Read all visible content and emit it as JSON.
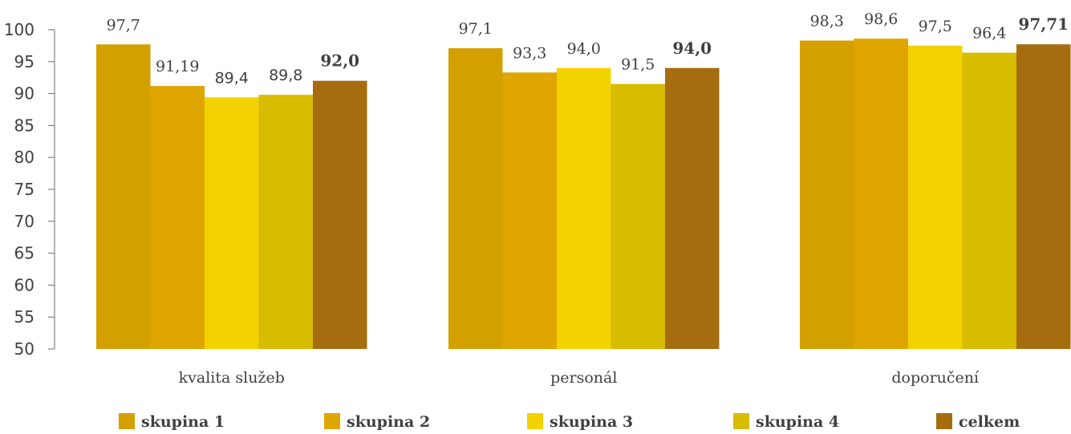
{
  "chart_data": {
    "type": "bar",
    "categories": [
      "kvalita služeb",
      "personál",
      "doporučení"
    ],
    "ylim": [
      50,
      100
    ],
    "yticks": [
      "50",
      "55",
      "60",
      "65",
      "70",
      "75",
      "80",
      "85",
      "90",
      "95",
      "100"
    ],
    "grid": false,
    "legend_position": "bottom",
    "series": [
      {
        "name": "skupina 1",
        "color": "#D4A000",
        "values": [
          97.7,
          97.1,
          98.3
        ],
        "labels": [
          "97,7",
          "97,1",
          "98,3"
        ]
      },
      {
        "name": "skupina 2",
        "color": "#E0A600",
        "values": [
          91.19,
          93.3,
          98.6
        ],
        "labels": [
          "91,19",
          "93,3",
          "98,6"
        ]
      },
      {
        "name": "skupina 3",
        "color": "#F2D200",
        "values": [
          89.4,
          94.0,
          97.5
        ],
        "labels": [
          "89,4",
          "94,0",
          "97,5"
        ]
      },
      {
        "name": "skupina 4",
        "color": "#D8BC00",
        "values": [
          89.8,
          91.5,
          96.4
        ],
        "labels": [
          "89,8",
          "91,5",
          "96,4"
        ]
      },
      {
        "name": "celkem",
        "color": "#A56D0E",
        "values": [
          92.0,
          94.0,
          97.71
        ],
        "labels": [
          "92,0",
          "94,0",
          "97,71"
        ]
      }
    ]
  }
}
